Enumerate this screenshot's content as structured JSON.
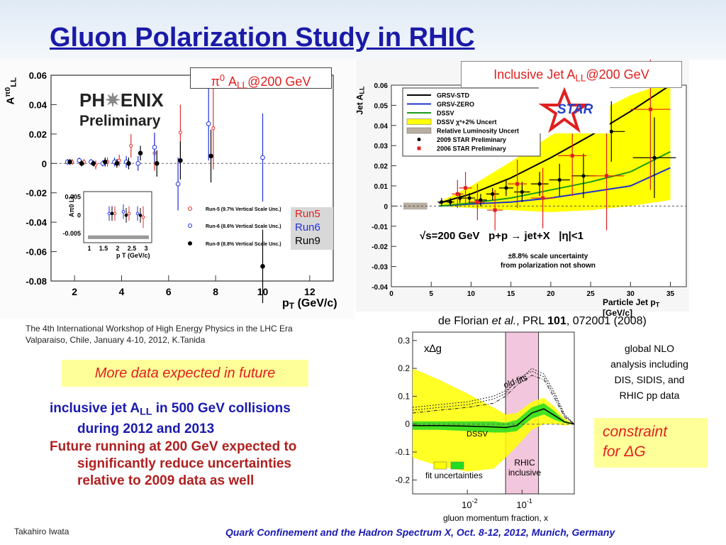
{
  "slide": {
    "title": "Gluon  Polarization Study in RHIC",
    "conference": "Quark Confinement and the Hadron Spectrum X,   Oct. 8-12, 2012,  Munich, Germany",
    "author": "Takahiro Iwata",
    "workshop_line1": "The 4th International Workshop of High Energy Physics in the LHC Era",
    "workshop_line2": "Valparaiso, Chile, January 4-10, 2012, K.Tanida",
    "more_data": "More data expected in future",
    "bullet1_a": "inclusive jet A",
    "bullet1_sub": "LL",
    "bullet1_b": " in 500 GeV collisions",
    "bullet1_c": "during 2012 and 2013",
    "bullet2_a": "Future running at 200 GeV expected to",
    "bullet2_b": "significantly reduce uncertainties",
    "bullet2_c": "relative to 2009 data as well",
    "reference_a": "de Florian ",
    "reference_b": "et al.",
    "reference_c": ", PRL ",
    "reference_d": "101",
    "reference_e": ", 072001 (2008)",
    "global_nlo_1": "global NLO",
    "global_nlo_2": "analysis including",
    "global_nlo_3": "DIS, SIDIS, and",
    "global_nlo_4": "RHIC pp data",
    "constraint_1": "constraint",
    "constraint_2": "for ΔG"
  },
  "colors": {
    "title": "#1a1aa8",
    "bullet_blue": "#1a1ab0",
    "bullet_red": "#b02020",
    "note_yellow": "#ffff99",
    "footer_blue": "#1a1ab0",
    "run5": "#e03030",
    "run6": "#2030e0",
    "run9": "#000000"
  },
  "chart_data": [
    {
      "id": "phenix",
      "type": "scatter",
      "title_box": "π⁰ ALL@200 GeV",
      "title_prefix": "π",
      "title_sup": "0",
      "title_a": " A",
      "title_sub": "LL",
      "title_b": "@200 GeV",
      "logo_line1": "PH",
      "logo_line1b": "ENIX",
      "logo_line2": "Preliminary",
      "xlabel": "p",
      "xlabel_sub": "T",
      "xlabel_unit": " (GeV/c)",
      "ylabel": "A",
      "ylabel_sup": "π0",
      "ylabel_sub": "LL",
      "xlim": [
        1,
        13
      ],
      "ylim": [
        -0.08,
        0.06
      ],
      "xticks": [
        2,
        4,
        6,
        8,
        10,
        12
      ],
      "yticks": [
        "0.06",
        "0.04",
        "0.02",
        "0",
        "-0.02",
        "-0.04",
        "-0.06",
        "-0.08"
      ],
      "ytick_values": [
        0.06,
        0.04,
        0.02,
        0,
        -0.02,
        -0.04,
        -0.06,
        -0.08
      ],
      "run_box": [
        "Run5",
        "Run6",
        "Run9"
      ],
      "legend": [
        "Run-5 (9.7% Vertical Scale Unc.)",
        "Run-6 (8.6% Vertical Scale Unc.)",
        "Run-9 (8.8% Vertical Scale Unc.)"
      ],
      "series": [
        {
          "name": "Run-5",
          "color": "#e03030",
          "marker": "open-circle-small",
          "points": [
            [
              1.9,
              0.001,
              0.002
            ],
            [
              2.4,
              0.001,
              0.002
            ],
            [
              2.9,
              -0.001,
              0.003
            ],
            [
              3.4,
              0.001,
              0.003
            ],
            [
              3.9,
              0.002,
              0.004
            ],
            [
              4.4,
              0.012,
              0.008
            ],
            [
              5.4,
              0.007,
              0.012
            ],
            [
              6.5,
              0.021,
              0.019
            ],
            [
              7.9,
              0.024,
              0.028
            ]
          ]
        },
        {
          "name": "Run-6",
          "color": "#2030e0",
          "marker": "open-circle",
          "points": [
            [
              1.7,
              0.001,
              0.002
            ],
            [
              2.2,
              0.002,
              0.002
            ],
            [
              2.7,
              0.001,
              0.002
            ],
            [
              3.2,
              0.0,
              0.002
            ],
            [
              3.7,
              0.001,
              0.003
            ],
            [
              4.2,
              0.001,
              0.004
            ],
            [
              4.7,
              0.0,
              0.005
            ],
            [
              5.4,
              0.011,
              0.01
            ],
            [
              6.4,
              -0.014,
              0.018
            ],
            [
              7.7,
              0.027,
              0.025
            ],
            [
              10.0,
              0.004,
              0.03
            ]
          ]
        },
        {
          "name": "Run-9",
          "color": "#000000",
          "marker": "filled-circle",
          "points": [
            [
              1.8,
              0.001,
              0.002
            ],
            [
              2.3,
              0.0,
              0.002
            ],
            [
              2.8,
              0.0,
              0.002
            ],
            [
              3.3,
              0.001,
              0.003
            ],
            [
              3.8,
              0.0,
              0.003
            ],
            [
              4.3,
              0.0,
              0.004
            ],
            [
              4.8,
              0.007,
              0.005
            ],
            [
              5.5,
              0.0,
              0.009
            ],
            [
              6.5,
              0.002,
              0.013
            ],
            [
              7.8,
              0.005,
              0.018
            ],
            [
              10.0,
              -0.07,
              0.025
            ]
          ]
        }
      ],
      "inset": {
        "xlim": [
          0.8,
          3.2
        ],
        "ylim": [
          -0.0075,
          0.0065
        ],
        "xticks": [
          "1",
          "1.5",
          "2",
          "2.5",
          "3"
        ],
        "xtick_values": [
          1,
          1.5,
          2,
          2.5,
          3
        ],
        "yticks": [
          "0.005",
          "0",
          "-0.005"
        ],
        "ytick_values": [
          0.005,
          0,
          -0.005
        ],
        "xlabel": "p",
        "xlabel_sub": "T",
        "xlabel_unit": " (GeV/c)",
        "ylabel": "A",
        "ylabel_sup": "π0",
        "ylabel_sub": "LL",
        "scale_band": [
          -0.0065,
          -0.0055
        ]
      }
    },
    {
      "id": "star",
      "type": "line",
      "title_a": "Inclusive Jet A",
      "title_sub": "LL",
      "title_b": "@200 GeV",
      "logo": "STAR",
      "xlabel": "Particle Jet p",
      "xlabel_sub": "T",
      "xlabel_unit": " [GeV/c]",
      "ylabel": "Jet A",
      "ylabel_sub": "LL",
      "xlim": [
        0,
        37
      ],
      "ylim": [
        -0.04,
        0.06
      ],
      "xticks": [
        0,
        5,
        10,
        15,
        20,
        25,
        30,
        35
      ],
      "yticks": [
        "0.06",
        "0.05",
        "0.04",
        "0.03",
        "0.02",
        "0.01",
        "0",
        "-0.01",
        "-0.02",
        "-0.03",
        "-0.04"
      ],
      "ytick_values": [
        0.06,
        0.05,
        0.04,
        0.03,
        0.02,
        0.01,
        0,
        -0.01,
        -0.02,
        -0.03,
        -0.04
      ],
      "annotation_a": "√s=200 GeV",
      "annotation_b": "p+p → jet+X",
      "annotation_c": "|η|<1",
      "note_line1": "±8.8% scale uncertainty",
      "note_line2": "from polarization not shown",
      "legend": [
        {
          "label": "GRSV-STD",
          "kind": "line",
          "color": "#000000"
        },
        {
          "label": "GRSV-ZERO",
          "kind": "line",
          "color": "#2233cc"
        },
        {
          "label": "DSSV",
          "kind": "line",
          "color": "#1a9a1a"
        },
        {
          "label": "DSSV χ²+2% Uncert",
          "kind": "box",
          "color": "#ffff00"
        },
        {
          "label": "Relative Luminosity Uncert",
          "kind": "box",
          "color": "#b8aea2"
        },
        {
          "label": "2009 STAR Preliminary",
          "kind": "dot",
          "color": "#000000"
        },
        {
          "label": "2006 STAR Preliminary",
          "kind": "square",
          "color": "#e02020"
        }
      ],
      "curves": {
        "GRSV-STD": [
          [
            6,
            0.0015
          ],
          [
            10,
            0.006
          ],
          [
            15,
            0.014
          ],
          [
            20,
            0.024
          ],
          [
            25,
            0.035
          ],
          [
            30,
            0.047
          ],
          [
            35,
            0.06
          ]
        ],
        "GRSV-ZERO": [
          [
            6,
            0.0
          ],
          [
            10,
            0.001
          ],
          [
            15,
            0.002
          ],
          [
            20,
            0.004
          ],
          [
            25,
            0.007
          ],
          [
            30,
            0.01
          ],
          [
            35,
            0.019
          ]
        ],
        "DSSV": [
          [
            6,
            0.0
          ],
          [
            10,
            0.0015
          ],
          [
            15,
            0.004
          ],
          [
            20,
            0.008
          ],
          [
            25,
            0.012
          ],
          [
            30,
            0.017
          ],
          [
            35,
            0.027
          ]
        ],
        "DSSV_band_upper": [
          [
            6,
            0.002
          ],
          [
            10,
            0.01
          ],
          [
            15,
            0.022
          ],
          [
            20,
            0.035
          ],
          [
            25,
            0.045
          ],
          [
            30,
            0.055
          ],
          [
            35,
            0.062
          ]
        ],
        "DSSV_band_lower": [
          [
            6,
            0.0
          ],
          [
            10,
            -0.001
          ],
          [
            15,
            -0.002
          ],
          [
            20,
            -0.003
          ],
          [
            25,
            -0.002
          ],
          [
            30,
            0.0
          ],
          [
            35,
            0.003
          ]
        ]
      },
      "lumi_band": {
        "x": [
          1.5,
          4.5
        ],
        "y": [
          -0.001,
          0.001
        ]
      },
      "series": [
        {
          "name": "2009 STAR Preliminary",
          "color": "#000000",
          "marker": "dot",
          "points": [
            [
              6.3,
              0.002,
              0.002,
              0.5
            ],
            [
              7.4,
              0.002,
              0.002,
              0.5
            ],
            [
              8.6,
              0.004,
              0.0025,
              0.6
            ],
            [
              9.8,
              0.004,
              0.0025,
              0.7
            ],
            [
              11.2,
              0.003,
              0.003,
              0.8
            ],
            [
              12.7,
              0.006,
              0.003,
              0.8
            ],
            [
              14.4,
              0.009,
              0.004,
              0.9
            ],
            [
              16.4,
              0.007,
              0.005,
              1.0
            ],
            [
              18.6,
              0.011,
              0.006,
              1.1
            ],
            [
              21.1,
              0.013,
              0.008,
              1.3
            ],
            [
              24.1,
              0.015,
              0.011,
              1.5
            ],
            [
              27.6,
              0.037,
              0.015,
              1.7
            ],
            [
              33.0,
              0.024,
              0.02,
              2.7
            ]
          ]
        },
        {
          "name": "2006 STAR Preliminary",
          "color": "#e02020",
          "marker": "square",
          "points": [
            [
              8.3,
              0.006,
              0.007,
              0.7
            ],
            [
              9.3,
              0.009,
              0.008,
              0.8
            ],
            [
              10.8,
              0.002,
              0.009,
              0.9
            ],
            [
              13.0,
              -0.002,
              0.01,
              1.0
            ],
            [
              15.8,
              0.011,
              0.012,
              1.2
            ],
            [
              19.0,
              0.004,
              0.015,
              1.5
            ],
            [
              22.7,
              0.025,
              0.02,
              1.8
            ],
            [
              27.0,
              0.015,
              0.027,
              2.2
            ],
            [
              32.5,
              0.048,
              0.04,
              2.5
            ]
          ]
        }
      ]
    },
    {
      "id": "dssv",
      "type": "area",
      "series_label": "x∆g",
      "xlabel": "gluon momentum fraction, x",
      "x_log": true,
      "xlim": [
        0.001,
        0.9
      ],
      "ylim": [
        -0.25,
        0.33
      ],
      "xticks": [
        0.01,
        0.1
      ],
      "xtick_base": "10",
      "xtick_exps": [
        "-2",
        "-1"
      ],
      "yticks": [
        "0.3",
        "0.2",
        "0.1",
        "0",
        "-0.1",
        "-0.2"
      ],
      "ytick_values": [
        0.3,
        0.2,
        0.1,
        0,
        -0.1,
        -0.2
      ],
      "label_old_fits": "old fits",
      "label_dssv": "DSSV",
      "label_rhic_1": "RHIC",
      "label_rhic_2": "inclusive",
      "label_fit_unc": "fit uncertainties",
      "rhic_region": [
        0.05,
        0.2
      ],
      "central": [
        [
          0.001,
          -0.005
        ],
        [
          0.003,
          -0.005
        ],
        [
          0.01,
          -0.007
        ],
        [
          0.03,
          -0.01
        ],
        [
          0.05,
          -0.012
        ],
        [
          0.08,
          -0.005
        ],
        [
          0.15,
          0.04
        ],
        [
          0.25,
          0.055
        ],
        [
          0.4,
          0.03
        ],
        [
          0.6,
          0.008
        ],
        [
          0.9,
          0.0
        ]
      ],
      "yellow_upper": [
        [
          0.001,
          0.2
        ],
        [
          0.003,
          0.16
        ],
        [
          0.01,
          0.11
        ],
        [
          0.03,
          0.06
        ],
        [
          0.05,
          0.035
        ],
        [
          0.08,
          0.04
        ],
        [
          0.15,
          0.08
        ],
        [
          0.25,
          0.095
        ],
        [
          0.4,
          0.06
        ],
        [
          0.6,
          0.02
        ],
        [
          0.9,
          0.0
        ]
      ],
      "yellow_lower": [
        [
          0.001,
          -0.12
        ],
        [
          0.003,
          -0.15
        ],
        [
          0.01,
          -0.17
        ],
        [
          0.03,
          -0.16
        ],
        [
          0.05,
          -0.12
        ],
        [
          0.08,
          -0.08
        ],
        [
          0.15,
          -0.02
        ],
        [
          0.25,
          0.0
        ],
        [
          0.4,
          0.0
        ],
        [
          0.6,
          -0.005
        ],
        [
          0.9,
          0.0
        ]
      ],
      "green_upper": [
        [
          0.001,
          0.01
        ],
        [
          0.003,
          0.01
        ],
        [
          0.01,
          0.01
        ],
        [
          0.03,
          0.01
        ],
        [
          0.05,
          0.005
        ],
        [
          0.08,
          0.015
        ],
        [
          0.15,
          0.06
        ],
        [
          0.25,
          0.075
        ],
        [
          0.4,
          0.045
        ],
        [
          0.6,
          0.012
        ],
        [
          0.9,
          0.0
        ]
      ],
      "green_lower": [
        [
          0.001,
          -0.02
        ],
        [
          0.003,
          -0.02
        ],
        [
          0.01,
          -0.025
        ],
        [
          0.03,
          -0.03
        ],
        [
          0.05,
          -0.03
        ],
        [
          0.08,
          -0.025
        ],
        [
          0.15,
          0.02
        ],
        [
          0.25,
          0.035
        ],
        [
          0.4,
          0.015
        ],
        [
          0.6,
          0.004
        ],
        [
          0.9,
          0.0
        ]
      ],
      "old_fits": [
        [
          [
            0.001,
            0.05
          ],
          [
            0.003,
            0.06
          ],
          [
            0.01,
            0.07
          ],
          [
            0.03,
            0.09
          ],
          [
            0.05,
            0.11
          ],
          [
            0.08,
            0.16
          ],
          [
            0.15,
            0.19
          ],
          [
            0.25,
            0.17
          ],
          [
            0.4,
            0.1
          ],
          [
            0.6,
            0.03
          ],
          [
            0.9,
            0.0
          ]
        ],
        [
          [
            0.001,
            0.04
          ],
          [
            0.003,
            0.05
          ],
          [
            0.01,
            0.06
          ],
          [
            0.03,
            0.075
          ],
          [
            0.05,
            0.1
          ],
          [
            0.08,
            0.14
          ],
          [
            0.15,
            0.175
          ],
          [
            0.25,
            0.16
          ],
          [
            0.4,
            0.09
          ],
          [
            0.6,
            0.025
          ],
          [
            0.9,
            0.0
          ]
        ],
        [
          [
            0.001,
            0.06
          ],
          [
            0.003,
            0.07
          ],
          [
            0.01,
            0.08
          ],
          [
            0.03,
            0.1
          ],
          [
            0.05,
            0.12
          ],
          [
            0.08,
            0.15
          ],
          [
            0.15,
            0.2
          ],
          [
            0.25,
            0.18
          ],
          [
            0.4,
            0.11
          ],
          [
            0.6,
            0.035
          ],
          [
            0.9,
            0.0
          ]
        ]
      ]
    }
  ]
}
